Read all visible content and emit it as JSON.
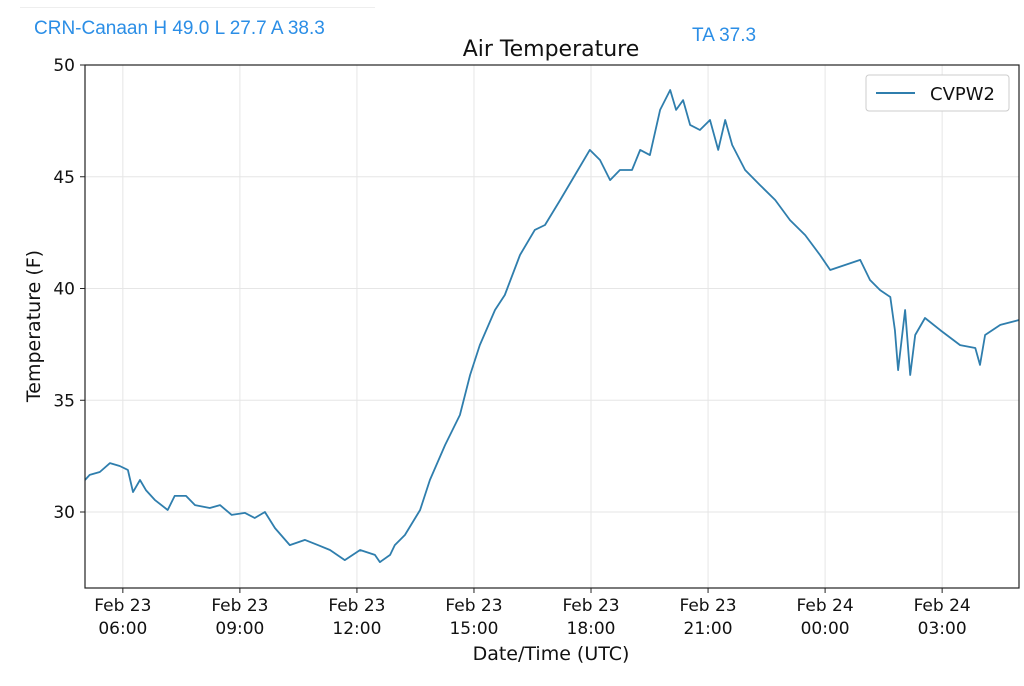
{
  "header": {
    "station_summary": "CRN-Canaan H 49.0 L 27.7 A 38.3",
    "ta_value": "TA 37.3"
  },
  "colors": {
    "series": "#2f7ead",
    "header_text": "#2b8ee6"
  },
  "chart_data": {
    "type": "line",
    "title": "Air Temperature",
    "xlabel": "Date/Time (UTC)",
    "ylabel": "Temperature (F)",
    "x_units": "hours since Feb 23 00:00 UTC",
    "xlim": [
      5.03,
      28.97
    ],
    "ylim": [
      26.6,
      50
    ],
    "grid": true,
    "legend_position": "top-right",
    "yticks": [
      30,
      35,
      40,
      45,
      50
    ],
    "xticks": [
      {
        "x": 6,
        "line1": "Feb 23",
        "line2": "06:00"
      },
      {
        "x": 9,
        "line1": "Feb 23",
        "line2": "09:00"
      },
      {
        "x": 12,
        "line1": "Feb 23",
        "line2": "12:00"
      },
      {
        "x": 15,
        "line1": "Feb 23",
        "line2": "15:00"
      },
      {
        "x": 18,
        "line1": "Feb 23",
        "line2": "18:00"
      },
      {
        "x": 21,
        "line1": "Feb 23",
        "line2": "21:00"
      },
      {
        "x": 24,
        "line1": "Feb 24",
        "line2": "00:00"
      },
      {
        "x": 27,
        "line1": "Feb 24",
        "line2": "03:00"
      }
    ],
    "series": [
      {
        "name": "CVPW2",
        "x": [
          5.03,
          5.15,
          5.41,
          5.67,
          5.92,
          6.13,
          6.26,
          6.44,
          6.59,
          6.82,
          7.15,
          7.33,
          7.62,
          7.85,
          8.23,
          8.49,
          8.79,
          9.13,
          9.38,
          9.64,
          9.9,
          10.28,
          10.67,
          11.0,
          11.31,
          11.69,
          12.08,
          12.46,
          12.59,
          12.85,
          12.97,
          13.23,
          13.62,
          13.87,
          14.26,
          14.64,
          14.9,
          15.15,
          15.54,
          15.79,
          16.18,
          16.56,
          16.82,
          17.21,
          17.59,
          17.97,
          18.23,
          18.49,
          18.74,
          19.05,
          19.26,
          19.51,
          19.77,
          20.03,
          20.18,
          20.36,
          20.54,
          20.79,
          21.05,
          21.26,
          21.44,
          21.62,
          21.95,
          22.33,
          22.72,
          23.1,
          23.49,
          23.87,
          24.13,
          24.51,
          24.9,
          25.15,
          25.41,
          25.67,
          25.79,
          25.87,
          26.05,
          26.18,
          26.31,
          26.56,
          26.95,
          27.46,
          27.85,
          27.97,
          28.1,
          28.49,
          28.97
        ],
        "y": [
          31.43,
          31.66,
          31.79,
          32.19,
          32.06,
          31.88,
          30.89,
          31.43,
          30.98,
          30.54,
          30.09,
          30.72,
          30.72,
          30.31,
          30.18,
          30.31,
          29.87,
          29.96,
          29.73,
          30.0,
          29.28,
          28.52,
          28.75,
          28.52,
          28.3,
          27.85,
          28.3,
          28.08,
          27.76,
          28.08,
          28.52,
          28.97,
          30.09,
          31.43,
          33.0,
          34.34,
          36.13,
          37.47,
          39.04,
          39.71,
          41.5,
          42.62,
          42.84,
          43.96,
          45.08,
          46.2,
          45.75,
          44.85,
          45.3,
          45.3,
          46.2,
          45.97,
          47.99,
          48.88,
          47.99,
          48.43,
          47.32,
          47.09,
          47.54,
          46.2,
          47.54,
          46.42,
          45.3,
          44.63,
          43.96,
          43.06,
          42.39,
          41.5,
          40.83,
          41.05,
          41.28,
          40.38,
          39.93,
          39.62,
          38.14,
          36.35,
          39.04,
          36.13,
          37.92,
          38.68,
          38.14,
          37.47,
          37.34,
          36.58,
          37.92,
          38.37,
          38.59
        ]
      }
    ]
  }
}
